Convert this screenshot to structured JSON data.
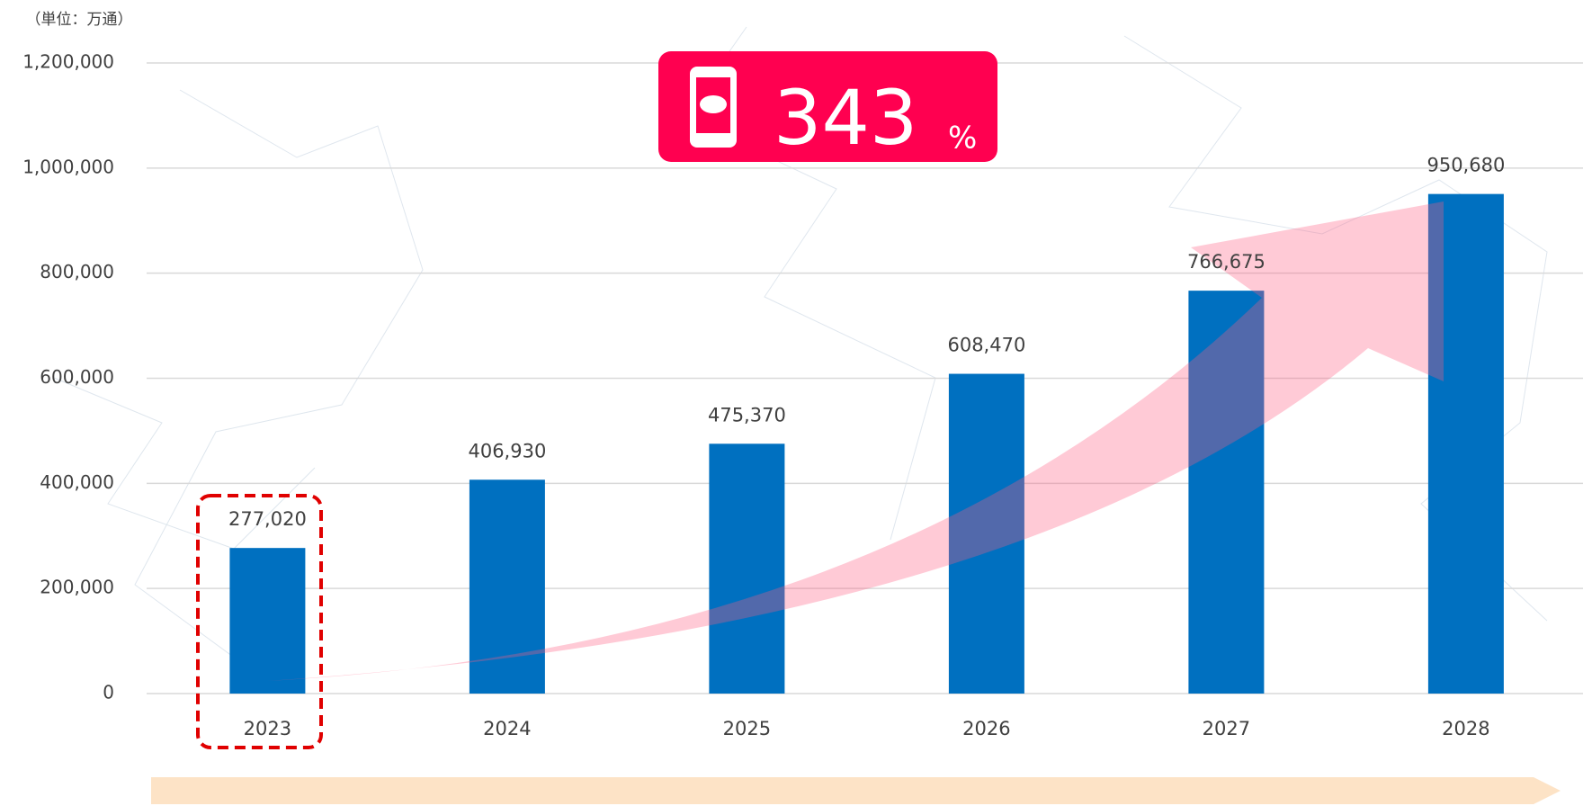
{
  "chart_data": {
    "type": "bar",
    "unit_label": "（単位：万通）",
    "categories": [
      "2023",
      "2024",
      "2025",
      "2026",
      "2027",
      "2028"
    ],
    "values": [
      277020,
      406930,
      475370,
      608470,
      766675,
      950680
    ],
    "value_labels": [
      "277,020",
      "406,930",
      "475,370",
      "608,470",
      "766,675",
      "950,680"
    ],
    "color": "#0070c0",
    "ylim": [
      0,
      1200000
    ],
    "yticks": [
      0,
      {
        "value": 200000,
        "label": "200,000"
      },
      {
        "value": 400000,
        "label": "400,000"
      },
      {
        "value": 600000,
        "label": "600,000"
      },
      {
        "value": 800000,
        "label": "800,000"
      },
      {
        "value": 1000000,
        "label": "1,000,000"
      },
      {
        "value": 1200000,
        "label": "1,200,000"
      }
    ],
    "grid": true,
    "callout": {
      "value": "343",
      "unit": "%"
    }
  }
}
